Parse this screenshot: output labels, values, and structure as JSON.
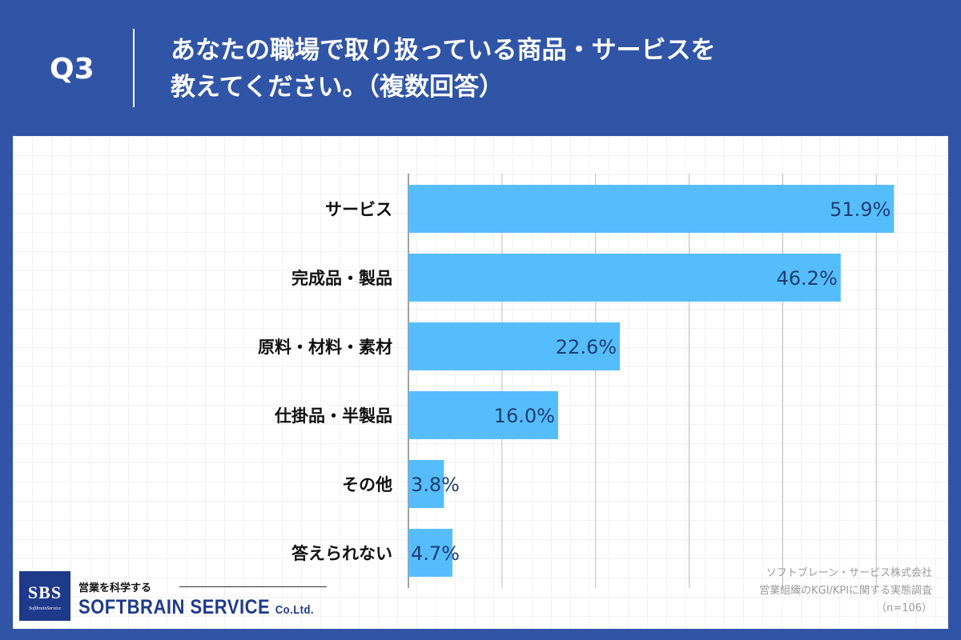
{
  "header": {
    "question_number": "Q3",
    "title_line1": "あなたの職場で取り扱っている商品・サービスを",
    "title_line2": "教えてください。（複数回答）"
  },
  "colors": {
    "background": "#3155a6",
    "bar": "#56bdfd",
    "value_text": "#1d3d6e",
    "logo": "#1f3a8a"
  },
  "chart_data": {
    "type": "bar",
    "orientation": "horizontal",
    "categories": [
      "サービス",
      "完成品・製品",
      "原料・材料・素材",
      "仕掛品・半製品",
      "その他",
      "答えられない"
    ],
    "values": [
      51.9,
      46.2,
      22.6,
      16.0,
      3.8,
      4.7
    ],
    "value_labels": [
      "51.9%",
      "46.2%",
      "22.6%",
      "16.0%",
      "3.8%",
      "4.7%"
    ],
    "xlim": [
      0,
      60
    ],
    "grid_step": 10,
    "grid": true
  },
  "footer": {
    "logo_abbr": "SBS",
    "logo_small": "SoftbrainService",
    "logo_tagline": "営業を科学する",
    "logo_name": "SOFTBRAIN SERVICE",
    "logo_suffix": "Co.Ltd.",
    "source_line1": "ソフトブレーン・サービス株式会社",
    "source_line2": "営業組織のKGI/KPIに関する実態調査",
    "source_line3": "（n=106）"
  }
}
